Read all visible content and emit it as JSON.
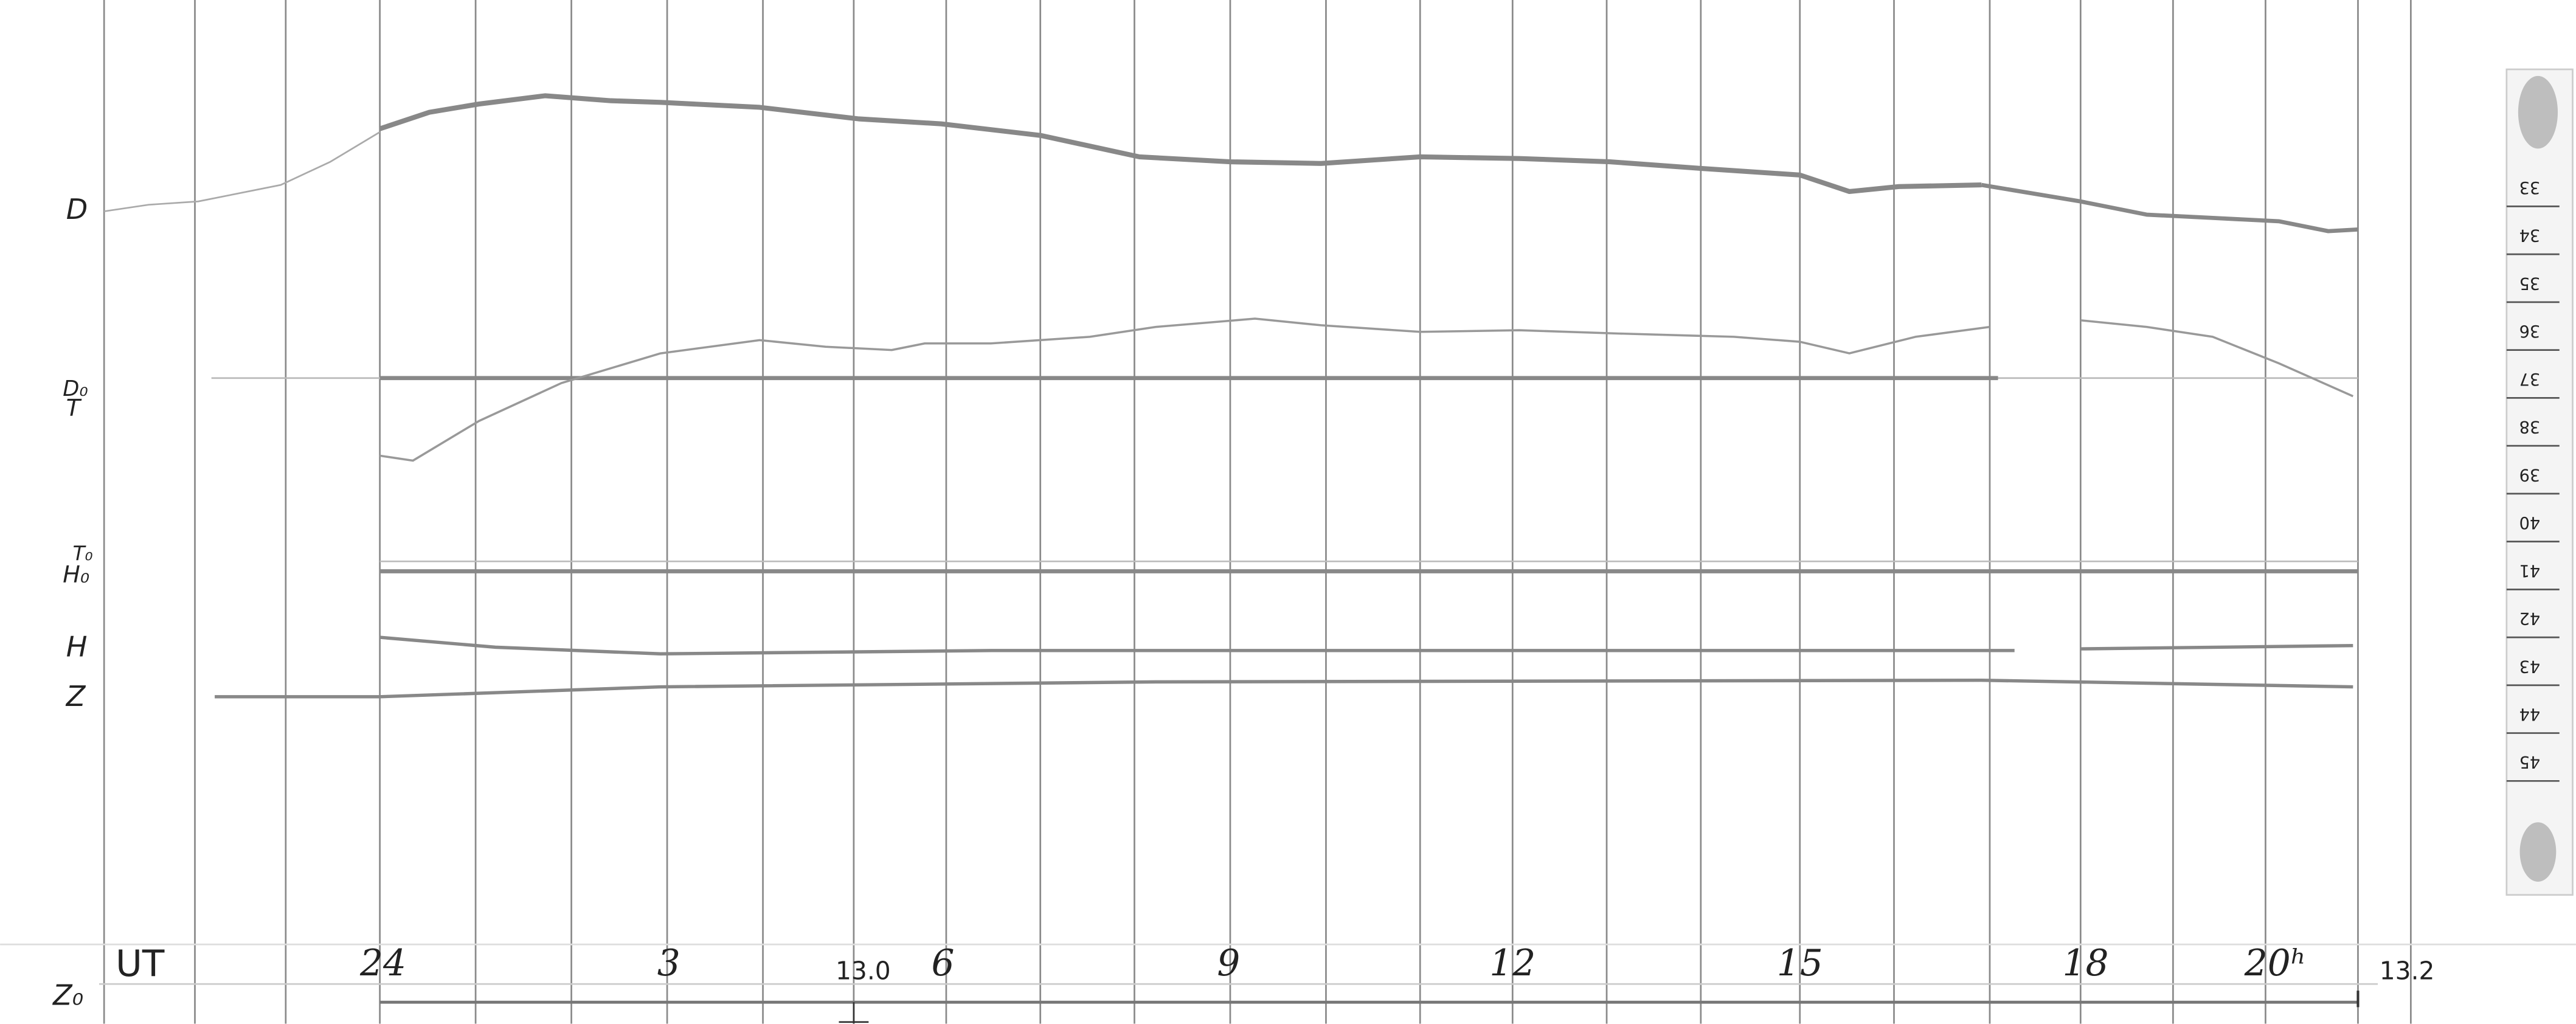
{
  "channel_labels": {
    "d": "D",
    "d0": "D₀",
    "t": "T",
    "t0": "T₀",
    "h0": "H₀",
    "h": "H",
    "z": "Z",
    "z0": "Z₀"
  },
  "time_axis": {
    "unit": "UT",
    "hours": [
      "24",
      "3",
      "6",
      "9",
      "12",
      "15",
      "18",
      "20ʰ"
    ]
  },
  "markers": [
    "13.0",
    "13.2"
  ],
  "scale": [
    "33",
    "34",
    "35",
    "36",
    "37",
    "38",
    "39",
    "40",
    "41",
    "42",
    "43",
    "44",
    "45"
  ]
}
